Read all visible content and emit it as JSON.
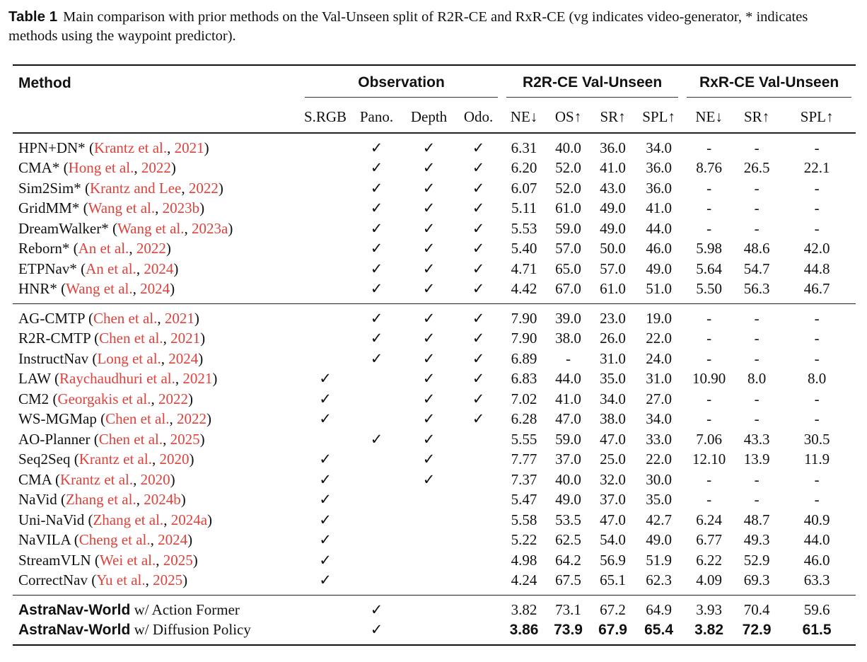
{
  "caption": {
    "label": "Table 1",
    "text": "Main comparison with prior methods on the Val-Unseen split of R2R-CE and RxR-CE (vg indicates video-generator, * indicates methods using the waypoint predictor)."
  },
  "header": {
    "method": "Method",
    "observation": "Observation",
    "r2r": "R2R-CE Val-Unseen",
    "rxr": "RxR-CE Val-Unseen",
    "columns": [
      "S.RGB",
      "Pano.",
      "Depth",
      "Odo.",
      "NE↓",
      "OS↑",
      "SR↑",
      "SPL↑",
      "NE↓",
      "SR↑",
      "SPL↑"
    ]
  },
  "check_mark": "✓",
  "cite_color": "#e0413b",
  "groups": [
    [
      {
        "name": "HPN+DN*",
        "author": "Krantz et al.",
        "year": "2021",
        "obs": [
          0,
          1,
          1,
          1
        ],
        "values": [
          "6.31",
          "40.0",
          "36.0",
          "34.0",
          "-",
          "-",
          "-"
        ]
      },
      {
        "name": "CMA*",
        "author": "Hong et al.",
        "year": "2022",
        "obs": [
          0,
          1,
          1,
          1
        ],
        "values": [
          "6.20",
          "52.0",
          "41.0",
          "36.0",
          "8.76",
          "26.5",
          "22.1"
        ]
      },
      {
        "name": "Sim2Sim*",
        "author": "Krantz and Lee",
        "year": "2022",
        "obs": [
          0,
          1,
          1,
          1
        ],
        "values": [
          "6.07",
          "52.0",
          "43.0",
          "36.0",
          "-",
          "-",
          "-"
        ]
      },
      {
        "name": "GridMM*",
        "author": "Wang et al.",
        "year": "2023b",
        "obs": [
          0,
          1,
          1,
          1
        ],
        "values": [
          "5.11",
          "61.0",
          "49.0",
          "41.0",
          "-",
          "-",
          "-"
        ]
      },
      {
        "name": "DreamWalker*",
        "author": "Wang et al.",
        "year": "2023a",
        "obs": [
          0,
          1,
          1,
          1
        ],
        "values": [
          "5.53",
          "59.0",
          "49.0",
          "44.0",
          "-",
          "-",
          "-"
        ]
      },
      {
        "name": "Reborn*",
        "author": "An et al.",
        "year": "2022",
        "obs": [
          0,
          1,
          1,
          1
        ],
        "values": [
          "5.40",
          "57.0",
          "50.0",
          "46.0",
          "5.98",
          "48.6",
          "42.0"
        ]
      },
      {
        "name": "ETPNav*",
        "author": "An et al.",
        "year": "2024",
        "obs": [
          0,
          1,
          1,
          1
        ],
        "values": [
          "4.71",
          "65.0",
          "57.0",
          "49.0",
          "5.64",
          "54.7",
          "44.8"
        ]
      },
      {
        "name": "HNR*",
        "author": "Wang et al.",
        "year": "2024",
        "obs": [
          0,
          1,
          1,
          1
        ],
        "values": [
          "4.42",
          "67.0",
          "61.0",
          "51.0",
          "5.50",
          "56.3",
          "46.7"
        ]
      }
    ],
    [
      {
        "name": "AG-CMTP",
        "author": "Chen et al.",
        "year": "2021",
        "obs": [
          0,
          1,
          1,
          1
        ],
        "values": [
          "7.90",
          "39.0",
          "23.0",
          "19.0",
          "-",
          "-",
          "-"
        ]
      },
      {
        "name": "R2R-CMTP",
        "author": "Chen et al.",
        "year": "2021",
        "obs": [
          0,
          1,
          1,
          1
        ],
        "values": [
          "7.90",
          "38.0",
          "26.0",
          "22.0",
          "-",
          "-",
          "-"
        ]
      },
      {
        "name": "InstructNav",
        "author": "Long et al.",
        "year": "2024",
        "obs": [
          0,
          1,
          1,
          1
        ],
        "values": [
          "6.89",
          "-",
          "31.0",
          "24.0",
          "-",
          "-",
          "-"
        ]
      },
      {
        "name": "LAW",
        "author": "Raychaudhuri et al.",
        "year": "2021",
        "obs": [
          1,
          0,
          1,
          1
        ],
        "values": [
          "6.83",
          "44.0",
          "35.0",
          "31.0",
          "10.90",
          "8.0",
          "8.0"
        ]
      },
      {
        "name": "CM2",
        "author": "Georgakis et al.",
        "year": "2022",
        "obs": [
          1,
          0,
          1,
          1
        ],
        "values": [
          "7.02",
          "41.0",
          "34.0",
          "27.0",
          "-",
          "-",
          "-"
        ]
      },
      {
        "name": "WS-MGMap",
        "author": "Chen et al.",
        "year": "2022",
        "obs": [
          1,
          0,
          1,
          1
        ],
        "values": [
          "6.28",
          "47.0",
          "38.0",
          "34.0",
          "-",
          "-",
          "-"
        ]
      },
      {
        "name": "AO-Planner",
        "author": "Chen et al.",
        "year": "2025",
        "obs": [
          0,
          1,
          1,
          0
        ],
        "values": [
          "5.55",
          "59.0",
          "47.0",
          "33.0",
          "7.06",
          "43.3",
          "30.5"
        ]
      },
      {
        "name": "Seq2Seq",
        "author": "Krantz et al.",
        "year": "2020",
        "obs": [
          1,
          0,
          1,
          0
        ],
        "values": [
          "7.77",
          "37.0",
          "25.0",
          "22.0",
          "12.10",
          "13.9",
          "11.9"
        ]
      },
      {
        "name": "CMA",
        "author": "Krantz et al.",
        "year": "2020",
        "obs": [
          1,
          0,
          1,
          0
        ],
        "values": [
          "7.37",
          "40.0",
          "32.0",
          "30.0",
          "-",
          "-",
          "-"
        ]
      },
      {
        "name": "NaVid",
        "author": "Zhang et al.",
        "year": "2024b",
        "obs": [
          1,
          0,
          0,
          0
        ],
        "values": [
          "5.47",
          "49.0",
          "37.0",
          "35.0",
          "-",
          "-",
          "-"
        ]
      },
      {
        "name": "Uni-NaVid",
        "author": "Zhang et al.",
        "year": "2024a",
        "obs": [
          1,
          0,
          0,
          0
        ],
        "values": [
          "5.58",
          "53.5",
          "47.0",
          "42.7",
          "6.24",
          "48.7",
          "40.9"
        ]
      },
      {
        "name": "NaVILA",
        "author": "Cheng et al.",
        "year": "2024",
        "obs": [
          1,
          0,
          0,
          0
        ],
        "values": [
          "5.22",
          "62.5",
          "54.0",
          "49.0",
          "6.77",
          "49.3",
          "44.0"
        ]
      },
      {
        "name": "StreamVLN",
        "author": "Wei et al.",
        "year": "2025",
        "obs": [
          1,
          0,
          0,
          0
        ],
        "values": [
          "4.98",
          "64.2",
          "56.9",
          "51.9",
          "6.22",
          "52.9",
          "46.0"
        ]
      },
      {
        "name": "CorrectNav",
        "author": "Yu et al.",
        "year": "2025",
        "obs": [
          1,
          0,
          0,
          0
        ],
        "values": [
          "4.24",
          "67.5",
          "65.1",
          "62.3",
          "4.09",
          "69.3",
          "63.3"
        ]
      }
    ],
    [
      {
        "name": "AstraNav-World",
        "suffix": " w/ Action Former",
        "obs": [
          0,
          1,
          0,
          0
        ],
        "values": [
          "3.82",
          "73.1",
          "67.2",
          "64.9",
          "3.93",
          "70.4",
          "59.6"
        ]
      },
      {
        "name": "AstraNav-World",
        "suffix": " w/ Diffusion Policy",
        "obs": [
          0,
          1,
          0,
          0
        ],
        "values": [
          "3.86",
          "73.9",
          "67.9",
          "65.4",
          "3.82",
          "72.9",
          "61.5"
        ],
        "bold": true
      }
    ]
  ]
}
